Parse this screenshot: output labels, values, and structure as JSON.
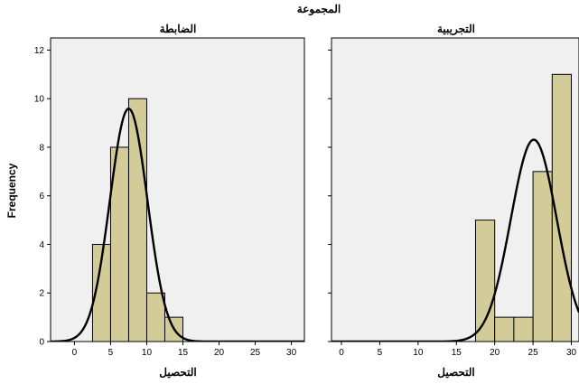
{
  "chart_data": {
    "type": "bar",
    "title": "المجموعة",
    "ylabel": "Frequency",
    "ylim": [
      0,
      12.5
    ],
    "y_ticks": [
      0,
      2,
      4,
      6,
      8,
      10,
      12
    ],
    "x_ticks": [
      0,
      5,
      10,
      15,
      20,
      25,
      30
    ],
    "grid": false,
    "legend": "none",
    "bar_color": "#d3cc99",
    "panel_background": "#f0f0f0",
    "panels": [
      {
        "title": "الضابطة",
        "xlabel": "التحصيل",
        "xlim": [
          -3.3,
          31.8
        ],
        "bin_edges": [
          2.5,
          5,
          7.5,
          10,
          12.5,
          15
        ],
        "counts": [
          4,
          8,
          10,
          2,
          1
        ],
        "normal_curve": {
          "mean": 7.5,
          "sd": 2.6,
          "n": 25,
          "bin_width": 2.5
        }
      },
      {
        "title": "التجريبية",
        "xlabel": "التحصيل",
        "xlim": [
          -1.3,
          31.0
        ],
        "bin_edges": [
          17.5,
          20,
          22.5,
          25,
          27.5,
          30
        ],
        "counts": [
          5,
          1,
          1,
          7,
          11
        ],
        "normal_curve": {
          "mean": 25.1,
          "sd": 3.0,
          "n": 25,
          "bin_width": 2.5
        }
      }
    ]
  }
}
